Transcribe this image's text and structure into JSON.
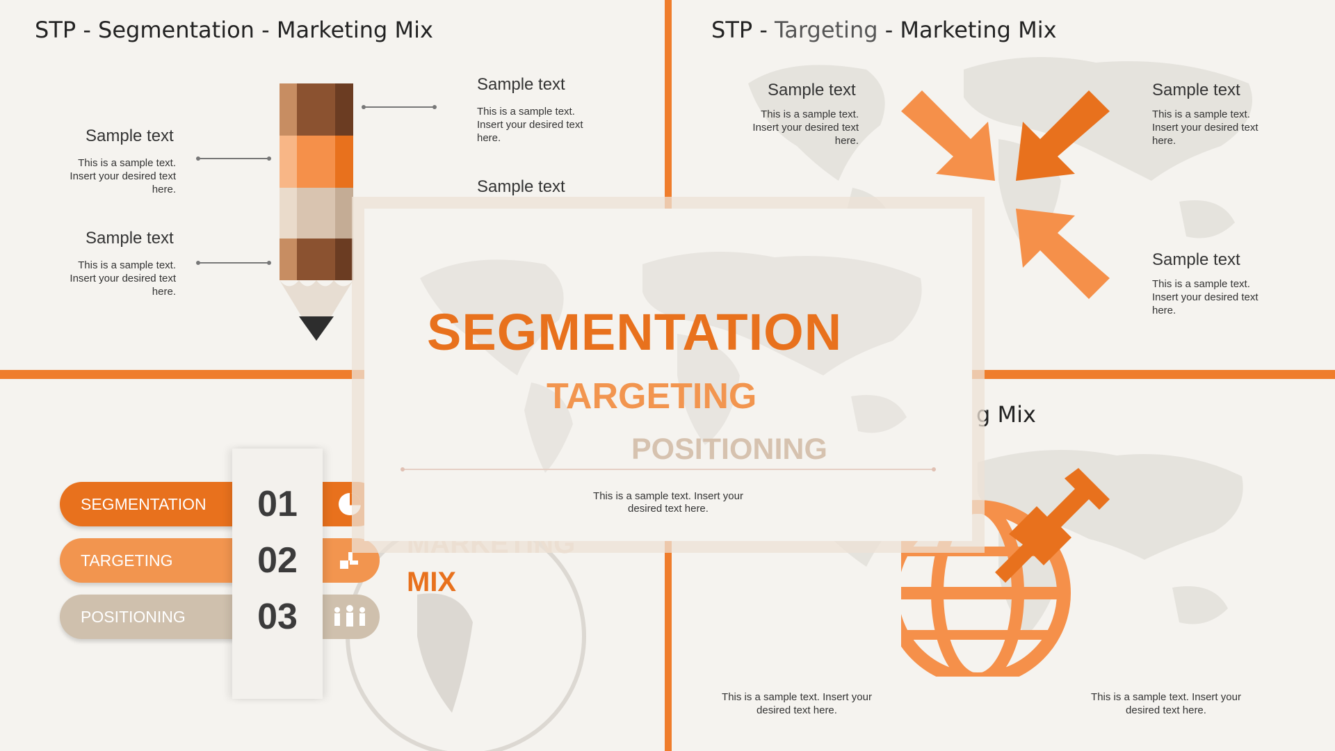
{
  "slides": {
    "segmentation": {
      "title_prefix": "STP - Segmentation - Marketing Mix",
      "items": [
        {
          "heading": "Sample text",
          "body": "This is a sample text. Insert your desired text here."
        },
        {
          "heading": "Sample text",
          "body": "This is a sample text. Insert your desired text here."
        },
        {
          "heading": "Sample text",
          "body": "This is a sample text. Insert your desired text here."
        },
        {
          "heading": "Sample text",
          "body": ""
        }
      ]
    },
    "targeting": {
      "title_a": "STP - ",
      "title_b": "Targeting",
      "title_c": " - Marketing Mix",
      "items": [
        {
          "heading": "Sample text",
          "body": "This is a sample text. Insert your desired text here."
        },
        {
          "heading": "Sample text",
          "body": "This is a sample text. Insert your desired text here."
        },
        {
          "heading": "Sample text",
          "body": "This is a sample text. Insert your desired text here."
        }
      ]
    },
    "stp_list": {
      "rows": [
        {
          "label": "SEGMENTATION",
          "number": "01",
          "color": "#e8711d",
          "icon": "pie-chart-icon"
        },
        {
          "label": "TARGETING",
          "number": "02",
          "color": "#f2954f",
          "icon": "puzzle-icon"
        },
        {
          "label": "POSITIONING",
          "number": "03",
          "color": "#cfc0ad",
          "icon": "people-icon"
        }
      ],
      "marketing_word": "MARKETING",
      "mix_word": "MIX"
    },
    "positioning": {
      "title_fragment": "g Mix",
      "captions": [
        "This is a sample text. Insert your desired text here.",
        "This is a sample text. Insert your desired text here."
      ]
    }
  },
  "overlay": {
    "word1": "SEGMENTATION",
    "word2": "TARGETING",
    "word3": "POSITIONING",
    "body": "This is a sample text. Insert your desired text here."
  },
  "colors": {
    "accent": "#ef7d2c",
    "dark_orange": "#e8711d",
    "light_orange": "#f2954f",
    "beige": "#cfc0ad",
    "background": "#f5f3ef"
  }
}
